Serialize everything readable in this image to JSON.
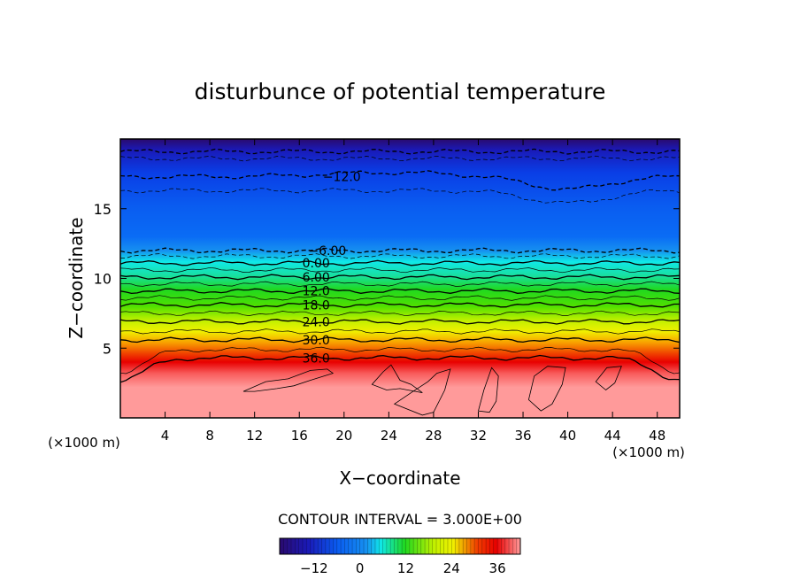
{
  "chart_data": {
    "type": "heatmap",
    "title": "disturbunce of potential temperature",
    "xlabel": "X−coordinate",
    "ylabel": "Z−coordinate",
    "x_unit": "(×1000 m)",
    "x_unit_right": "(×1000 m)",
    "xlim": [
      0,
      50
    ],
    "ylim": [
      0,
      20
    ],
    "xticks": [
      4,
      8,
      12,
      16,
      20,
      24,
      28,
      32,
      36,
      40,
      44,
      48
    ],
    "yticks": [
      5,
      10,
      15
    ],
    "contour_interval_label": "CONTOUR INTERVAL = 3.000E+00",
    "contour_interval": 3.0,
    "contour_labels": [
      {
        "text": "−12.0",
        "value": -12.0,
        "x": 19.8,
        "z": 17.3
      },
      {
        "text": "−6.00",
        "value": -6.0,
        "x": 18.5,
        "z": 12.0
      },
      {
        "text": "0.00",
        "value": 0.0,
        "x": 17.5,
        "z": 11.1
      },
      {
        "text": "6.00",
        "value": 6.0,
        "x": 17.5,
        "z": 10.1
      },
      {
        "text": "12.0",
        "value": 12.0,
        "x": 17.5,
        "z": 9.1
      },
      {
        "text": "18.0",
        "value": 18.0,
        "x": 17.5,
        "z": 8.1
      },
      {
        "text": "24.0",
        "value": 24.0,
        "x": 17.5,
        "z": 6.9
      },
      {
        "text": "30.0",
        "value": 30.0,
        "x": 17.5,
        "z": 5.6
      },
      {
        "text": "36.0",
        "value": 36.0,
        "x": 17.5,
        "z": 4.3
      }
    ],
    "colorbar": {
      "min": -21,
      "max": 42,
      "ticks": [
        {
          "label": "−12",
          "value": -12
        },
        {
          "label": "0",
          "value": 0
        },
        {
          "label": "12",
          "value": 12
        },
        {
          "label": "24",
          "value": 24
        },
        {
          "label": "36",
          "value": 36
        }
      ]
    },
    "colors": {
      "cold": "#2a0a6e",
      "mid_cold": "#0a5cf0",
      "cyan": "#10e8e8",
      "green": "#20d820",
      "yellow": "#f0f000",
      "red": "#e80000",
      "hot": "#ff9a9a"
    }
  }
}
